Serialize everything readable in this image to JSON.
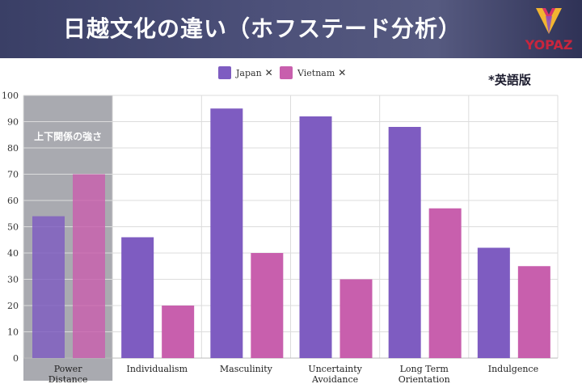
{
  "header": {
    "title": "日越文化の違い（ホフステード分析）",
    "logo_text": "YOPAZ",
    "edition_note": "*英語版"
  },
  "legend": [
    {
      "name": "Japan",
      "color": "#7e5cc1",
      "close": "✕"
    },
    {
      "name": "Vietnam",
      "color": "#c85fad",
      "close": "✕"
    }
  ],
  "chart_data": {
    "type": "bar",
    "categories": [
      "Power Distance",
      "Individualism",
      "Masculinity",
      "Uncertainty Avoidance",
      "Long Term Orientation",
      "Indulgence"
    ],
    "series": [
      {
        "name": "Japan",
        "values": [
          54,
          46,
          95,
          92,
          88,
          42
        ],
        "color": "#7e5cc1"
      },
      {
        "name": "Vietnam",
        "values": [
          70,
          20,
          40,
          30,
          57,
          35
        ],
        "color": "#c85fad"
      }
    ],
    "ylim": [
      0,
      100
    ],
    "yticks": [
      0,
      10,
      20,
      30,
      40,
      50,
      60,
      70,
      80,
      90,
      100
    ],
    "grid": true,
    "legend_position": "top",
    "highlighted_category": "Power Distance",
    "highlight_label": "上下関係の強さ",
    "highlight_color": "#a9aab0"
  }
}
